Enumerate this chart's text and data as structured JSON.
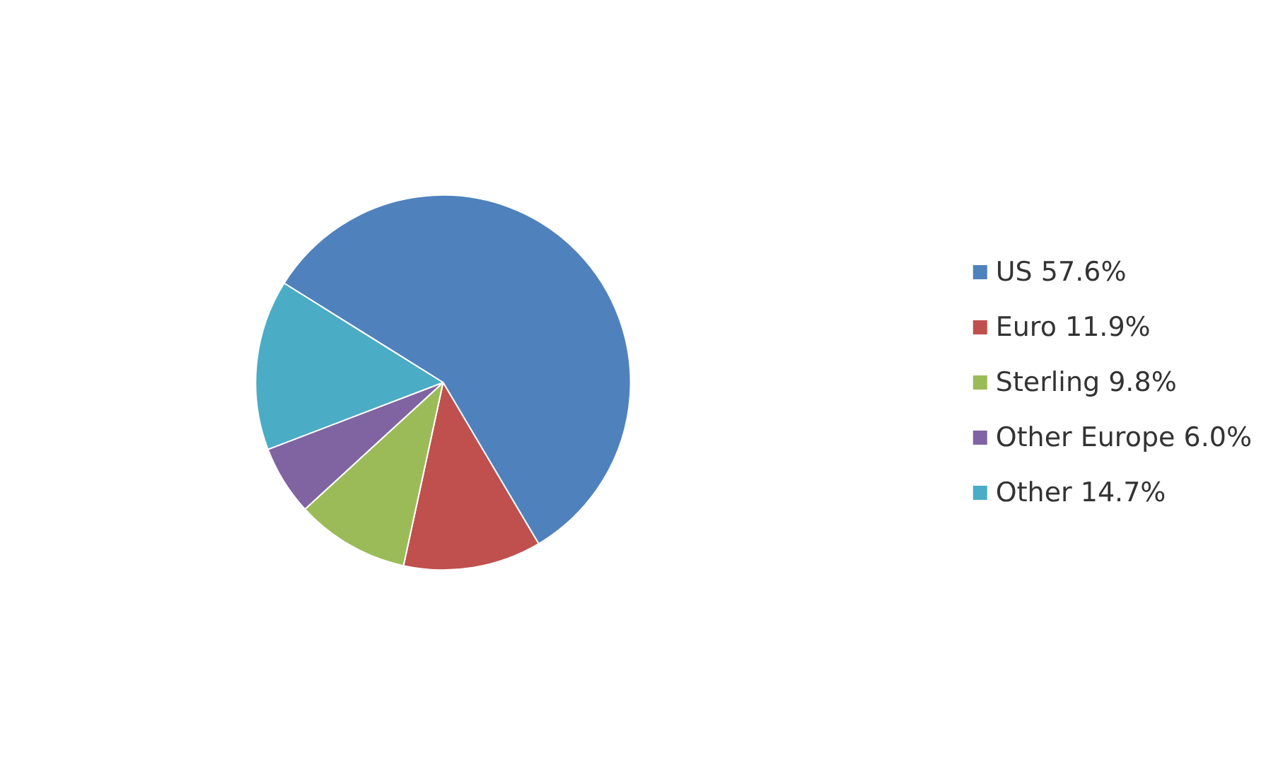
{
  "chart_data": {
    "type": "pie",
    "categories": [
      "US 57.6%",
      "Euro 11.9%",
      "Sterling 9.8%",
      "Other Europe 6.0%",
      "Other 14.7%"
    ],
    "values": [
      57.6,
      11.9,
      9.8,
      6.0,
      14.7
    ],
    "colors": [
      "#4f81bd",
      "#c0504d",
      "#9bbb59",
      "#8064a2",
      "#4bacc6"
    ],
    "legend": "right"
  }
}
